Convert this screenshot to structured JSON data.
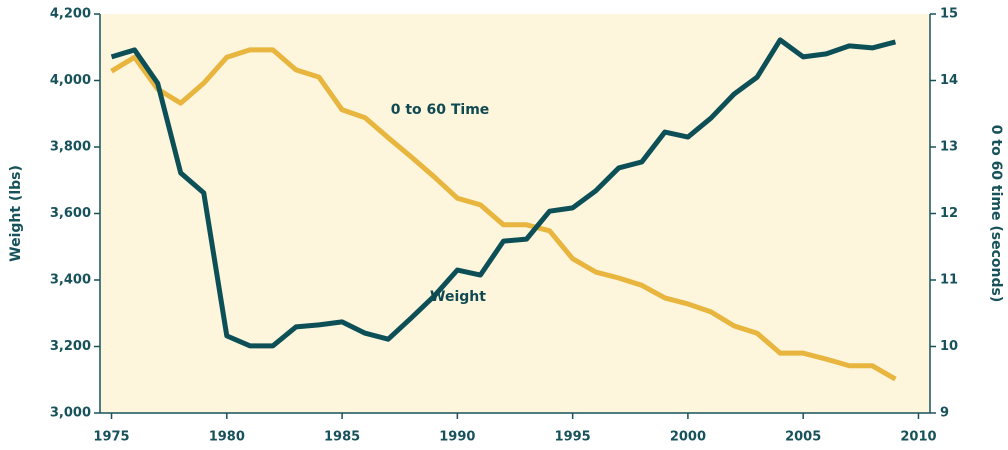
{
  "chart_data": {
    "type": "line",
    "x": [
      1975,
      1976,
      1977,
      1978,
      1979,
      1980,
      1981,
      1982,
      1983,
      1984,
      1985,
      1986,
      1987,
      1988,
      1989,
      1990,
      1991,
      1992,
      1993,
      1994,
      1995,
      1996,
      1997,
      1998,
      1999,
      2000,
      2001,
      2002,
      2003,
      2004,
      2005,
      2006,
      2007,
      2008,
      2009
    ],
    "series": [
      {
        "name": "Weight",
        "color": "#0d4f57",
        "axis": "y",
        "values": [
          4071,
          4092,
          3992,
          3722,
          3662,
          3232,
          3202,
          3202,
          3259,
          3265,
          3274,
          3240,
          3222,
          3286,
          3352,
          3430,
          3415,
          3517,
          3523,
          3607,
          3617,
          3668,
          3737,
          3755,
          3845,
          3830,
          3887,
          3959,
          4010,
          4122,
          4071,
          4080,
          4104,
          4098,
          4116
        ]
      },
      {
        "name": "0 to 60 Time",
        "color": "#e8b53e",
        "axis": "y2",
        "values": [
          14.14,
          14.35,
          13.87,
          13.66,
          13.96,
          14.35,
          14.46,
          14.46,
          14.16,
          14.05,
          13.56,
          13.44,
          13.14,
          12.85,
          12.55,
          12.23,
          12.13,
          11.83,
          11.83,
          11.74,
          11.32,
          11.12,
          11.03,
          10.92,
          10.73,
          10.64,
          10.52,
          10.31,
          10.2,
          9.9,
          9.9,
          9.81,
          9.71,
          9.71,
          9.51
        ]
      }
    ],
    "ylabel": "Weight (lbs)",
    "y2label": "0 to 60 time (seconds)",
    "xlim": [
      1974.5,
      2010.5
    ],
    "xticks": [
      1975,
      1980,
      1985,
      1990,
      1995,
      2000,
      2005,
      2010
    ],
    "ylim": [
      3000,
      4200
    ],
    "yticks": [
      {
        "value": 3000,
        "label": "3,000"
      },
      {
        "value": 3200,
        "label": "3,200"
      },
      {
        "value": 3400,
        "label": "3,400"
      },
      {
        "value": 3600,
        "label": "3,600"
      },
      {
        "value": 3800,
        "label": "3,800"
      },
      {
        "value": 4000,
        "label": "4,000"
      },
      {
        "value": 4200,
        "label": "4,200"
      }
    ],
    "y2lim": [
      9,
      15
    ],
    "y2ticks": [
      9,
      10,
      11,
      12,
      13,
      14,
      15
    ],
    "background": "#fdf5dc",
    "legend": false
  }
}
